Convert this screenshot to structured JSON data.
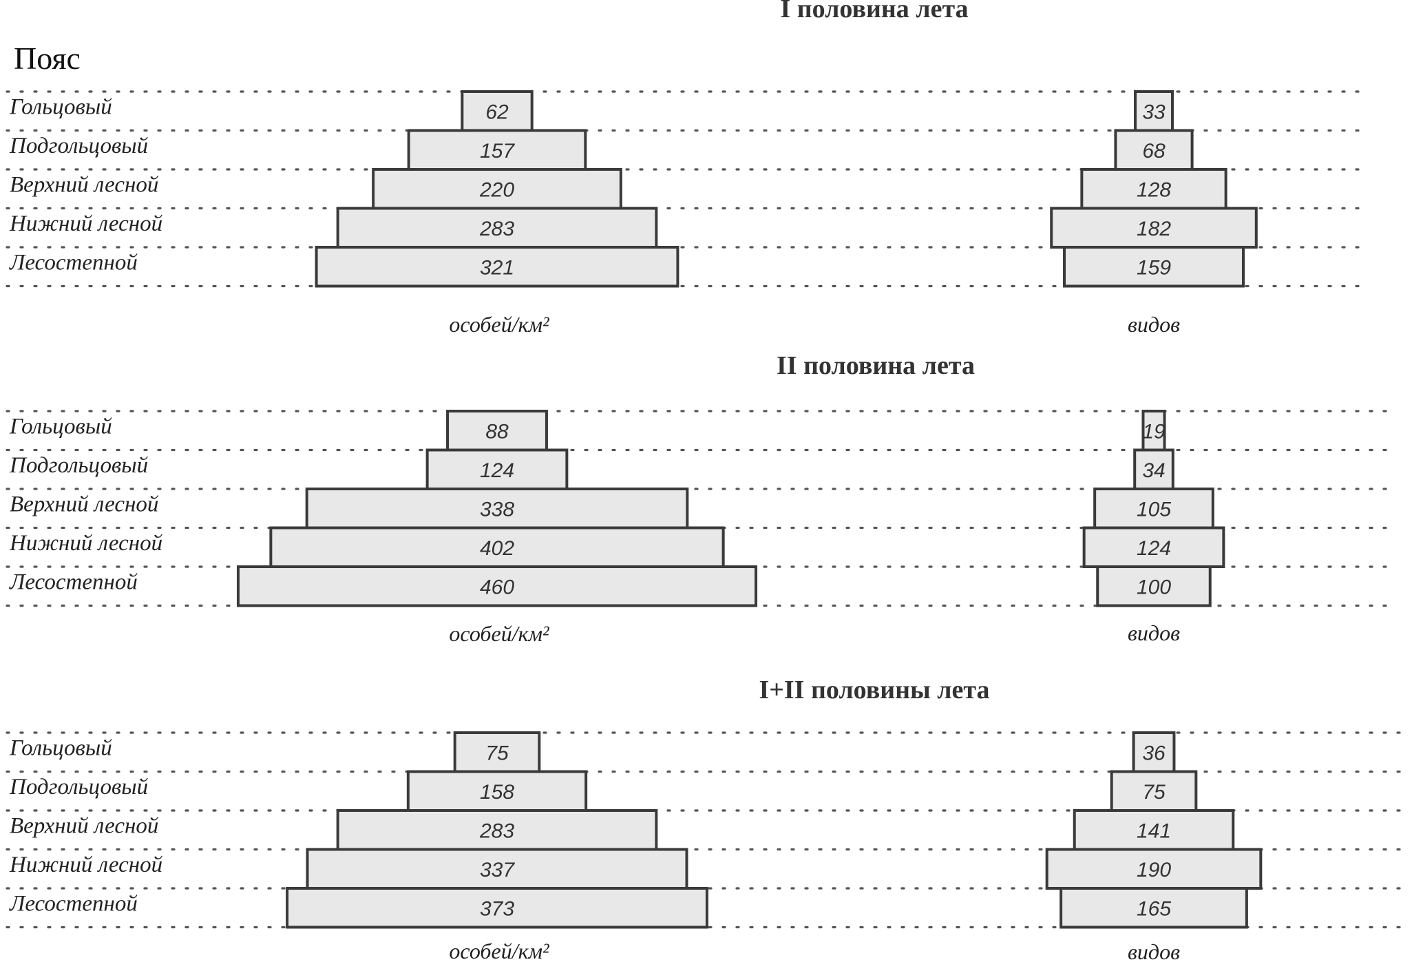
{
  "figure": {
    "header": "Пояс",
    "belts": [
      "Гольцовый",
      "Подгольцовый",
      "Верхний лесной",
      "Нижний лесной",
      "Лесостепной"
    ]
  },
  "chart_data": [
    {
      "type": "bar",
      "title": "I половина лета",
      "categories": [
        "Гольцовый",
        "Подгольцовый",
        "Верхний лесной",
        "Нижний лесной",
        "Лесостепной"
      ],
      "series": [
        {
          "name": "особей/км²",
          "values": [
            62,
            157,
            220,
            283,
            321
          ]
        },
        {
          "name": "видов",
          "values": [
            33,
            68,
            128,
            182,
            159
          ]
        }
      ]
    },
    {
      "type": "bar",
      "title": "II половина лета",
      "categories": [
        "Гольцовый",
        "Подгольцовый",
        "Верхний лесной",
        "Нижний лесной",
        "Лесостепной"
      ],
      "series": [
        {
          "name": "особей/км²",
          "values": [
            88,
            124,
            338,
            402,
            460
          ]
        },
        {
          "name": "видов",
          "values": [
            19,
            34,
            105,
            124,
            100
          ]
        }
      ]
    },
    {
      "type": "bar",
      "title": "I+II половины лета",
      "categories": [
        "Гольцовый",
        "Подгольцовый",
        "Верхний лесной",
        "Нижний лесной",
        "Лесостепной"
      ],
      "series": [
        {
          "name": "особей/км²",
          "values": [
            75,
            158,
            283,
            337,
            373
          ]
        },
        {
          "name": "видов",
          "values": [
            36,
            75,
            141,
            190,
            165
          ]
        }
      ]
    }
  ]
}
